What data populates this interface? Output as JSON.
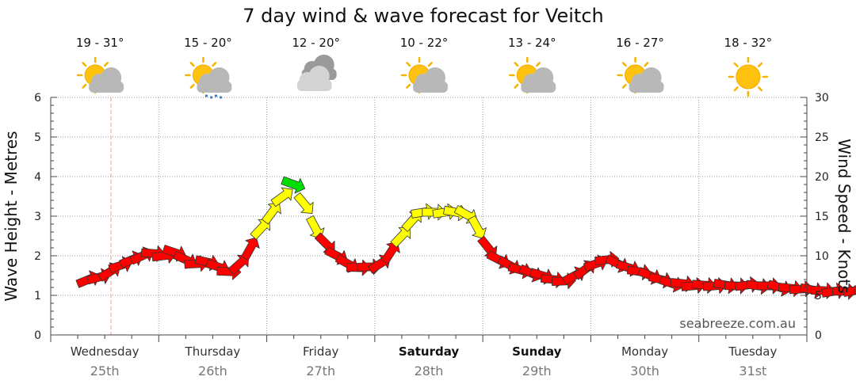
{
  "title": "7 day wind & wave forecast for Veitch",
  "brand": "seabreeze.com.au",
  "y_left_title": "Wave Height - Metres",
  "y_right_title": "Wind Speed - Knots",
  "colors": {
    "calm": "#ff0000",
    "moderate": "#ffff00",
    "fresh": "#00dd00",
    "outline": "#333333",
    "grid": "#9a9a9a",
    "nowline": "#e8a08a"
  },
  "days": [
    {
      "day": "Wednesday",
      "date": "25th",
      "temps": "19 - 31°",
      "weather": "partly-cloudy-icon",
      "bold": false
    },
    {
      "day": "Thursday",
      "date": "26th",
      "temps": "15 - 20°",
      "weather": "partly-cloudy-rain-icon",
      "bold": false
    },
    {
      "day": "Friday",
      "date": "27th",
      "temps": "12 - 20°",
      "weather": "cloudy-icon",
      "bold": false
    },
    {
      "day": "Saturday",
      "date": "28th",
      "temps": "10 - 22°",
      "weather": "partly-cloudy-icon",
      "bold": true
    },
    {
      "day": "Sunday",
      "date": "29th",
      "temps": "13 - 24°",
      "weather": "partly-cloudy-icon",
      "bold": true
    },
    {
      "day": "Monday",
      "date": "30th",
      "temps": "16 - 27°",
      "weather": "partly-cloudy-icon",
      "bold": false
    },
    {
      "day": "Tuesday",
      "date": "31st",
      "temps": "18 - 32°",
      "weather": "sunny-icon",
      "bold": false
    }
  ],
  "chart_data": {
    "type": "line",
    "title": "7 day wind & wave forecast for Veitch",
    "x_unit": "days from Wednesday 00:00",
    "y_left": {
      "label": "Wave Height - Metres",
      "range": [
        0,
        6
      ],
      "ticks": [
        0,
        1,
        2,
        3,
        4,
        5,
        6
      ]
    },
    "y_right": {
      "label": "Wind Speed - Knots",
      "range": [
        0,
        30
      ],
      "ticks": [
        0,
        5,
        10,
        15,
        20,
        25,
        30
      ]
    },
    "series": [
      {
        "name": "Wind Speed - Knots",
        "points": [
          [
            0.35,
            7.0
          ],
          [
            0.45,
            7.3
          ],
          [
            0.55,
            8.0
          ],
          [
            0.65,
            8.8
          ],
          [
            0.75,
            9.5
          ],
          [
            0.85,
            10.0
          ],
          [
            0.95,
            10.3
          ],
          [
            1.05,
            10.0
          ],
          [
            1.15,
            10.4
          ],
          [
            1.25,
            9.5
          ],
          [
            1.35,
            9.0
          ],
          [
            1.45,
            9.2
          ],
          [
            1.55,
            8.6
          ],
          [
            1.65,
            8.0
          ],
          [
            1.75,
            9.0
          ],
          [
            1.85,
            11.0
          ],
          [
            1.95,
            13.5
          ],
          [
            2.05,
            15.5
          ],
          [
            2.15,
            17.5
          ],
          [
            2.25,
            19.0
          ],
          [
            2.35,
            16.5
          ],
          [
            2.45,
            13.5
          ],
          [
            2.55,
            11.5
          ],
          [
            2.65,
            10.0
          ],
          [
            2.75,
            9.0
          ],
          [
            2.85,
            8.5
          ],
          [
            2.95,
            8.6
          ],
          [
            3.05,
            9.0
          ],
          [
            3.15,
            10.5
          ],
          [
            3.25,
            12.5
          ],
          [
            3.35,
            14.5
          ],
          [
            3.45,
            15.5
          ],
          [
            3.55,
            15.5
          ],
          [
            3.65,
            15.5
          ],
          [
            3.75,
            15.5
          ],
          [
            3.85,
            15.2
          ],
          [
            3.95,
            13.5
          ],
          [
            4.05,
            11.0
          ],
          [
            4.15,
            9.5
          ],
          [
            4.25,
            8.8
          ],
          [
            4.35,
            8.2
          ],
          [
            4.45,
            7.8
          ],
          [
            4.55,
            7.5
          ],
          [
            4.65,
            7.0
          ],
          [
            4.75,
            6.8
          ],
          [
            4.85,
            7.5
          ],
          [
            4.95,
            8.3
          ],
          [
            5.05,
            9.0
          ],
          [
            5.15,
            9.5
          ],
          [
            5.25,
            9.0
          ],
          [
            5.35,
            8.5
          ],
          [
            5.45,
            8.0
          ],
          [
            5.55,
            7.5
          ],
          [
            5.65,
            7.0
          ],
          [
            5.75,
            6.5
          ],
          [
            5.85,
            6.5
          ],
          [
            5.95,
            6.2
          ],
          [
            6.05,
            6.3
          ],
          [
            6.15,
            6.2
          ],
          [
            6.25,
            6.3
          ],
          [
            6.35,
            6.2
          ],
          [
            6.45,
            6.3
          ],
          [
            6.55,
            6.2
          ],
          [
            6.65,
            6.2
          ],
          [
            6.75,
            6.0
          ],
          [
            6.85,
            5.9
          ],
          [
            6.95,
            5.8
          ],
          [
            7.05,
            5.7
          ],
          [
            7.15,
            5.6
          ],
          [
            7.25,
            5.5
          ],
          [
            7.35,
            5.5
          ],
          [
            7.45,
            5.6
          ],
          [
            7.55,
            5.7
          ],
          [
            7.65,
            6.0
          ],
          [
            7.75,
            6.3
          ],
          [
            7.85,
            6.5
          ],
          [
            7.95,
            6.6
          ],
          [
            8.05,
            6.5
          ],
          [
            8.15,
            6.5
          ],
          [
            8.25,
            6.4
          ],
          [
            8.35,
            6.4
          ],
          [
            8.45,
            6.4
          ],
          [
            8.55,
            6.4
          ],
          [
            8.65,
            6.4
          ],
          [
            8.75,
            6.5
          ],
          [
            8.85,
            7.0
          ],
          [
            8.95,
            8.0
          ],
          [
            9.05,
            9.0
          ],
          [
            9.15,
            9.6
          ],
          [
            9.25,
            9.5
          ],
          [
            9.35,
            9.2
          ],
          [
            9.45,
            8.8
          ],
          [
            9.55,
            8.2
          ],
          [
            9.65,
            7.5
          ],
          [
            9.75,
            7.0
          ],
          [
            9.85,
            8.0
          ],
          [
            9.95,
            9.5
          ]
        ]
      }
    ],
    "legend": "none"
  }
}
